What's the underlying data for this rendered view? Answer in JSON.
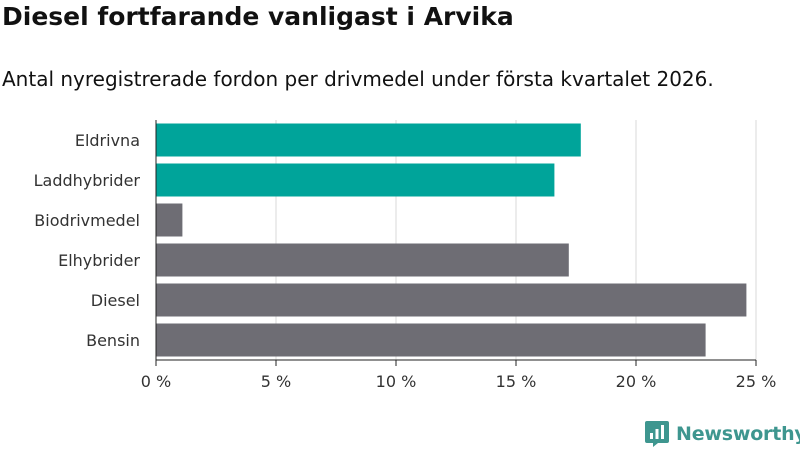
{
  "header": {
    "title": "Diesel fortfarande vanligast i Arvika",
    "subtitle": "Antal nyregistrerade fordon per drivmedel under första kvartalet 2026."
  },
  "brand": {
    "name": "Newsworthy",
    "icon": "newsworthy-logo-icon",
    "color": "#3e968f"
  },
  "chart_data": {
    "type": "bar",
    "orientation": "horizontal",
    "categories": [
      "Eldrivna",
      "Laddhybrider",
      "Biodrivmedel",
      "Elhybrider",
      "Diesel",
      "Bensin"
    ],
    "values": [
      17.7,
      16.6,
      1.1,
      17.2,
      24.6,
      22.9
    ],
    "colors": [
      "#00a49a",
      "#00a49a",
      "#6e6d74",
      "#6e6d74",
      "#6e6d74",
      "#6e6d74"
    ],
    "xlim": [
      0,
      25
    ],
    "xticks": [
      0,
      5,
      10,
      15,
      20,
      25
    ],
    "xtick_labels": [
      "0 %",
      "5 %",
      "10 %",
      "15 %",
      "20 %",
      "25 %"
    ],
    "grid": true,
    "xlabel": "",
    "ylabel": ""
  }
}
